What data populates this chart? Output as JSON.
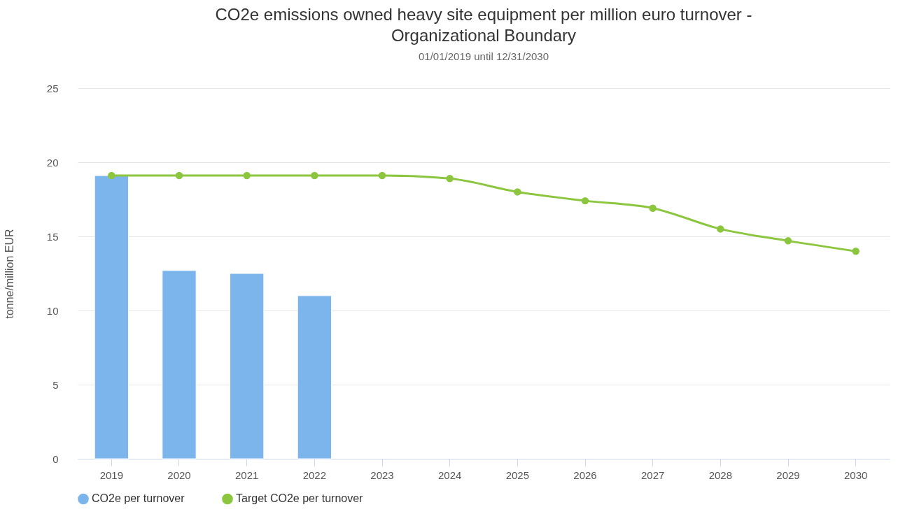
{
  "chart_data": {
    "type": "bar",
    "title": "CO2e emissions owned heavy site equipment per million euro turnover - Organizational Boundary",
    "subtitle": "01/01/2019 until 12/31/2030",
    "ylabel": "tonne/million EUR",
    "categories": [
      "2019",
      "2020",
      "2021",
      "2022",
      "2023",
      "2024",
      "2025",
      "2026",
      "2027",
      "2028",
      "2029",
      "2030"
    ],
    "series": [
      {
        "name": "CO2e per turnover",
        "color": "#7cb5ec",
        "values": [
          19.1,
          12.7,
          12.5,
          11.0,
          null,
          null,
          null,
          null,
          null,
          null,
          null,
          null
        ]
      },
      {
        "name": "Target CO2e per turnover",
        "type": "line",
        "color": "#8cc63f",
        "marker": "circle",
        "line_style": "solid",
        "values": [
          19.1,
          19.1,
          19.1,
          19.1,
          19.1,
          18.9,
          18.0,
          17.4,
          16.9,
          15.5,
          14.7,
          14.0
        ]
      }
    ],
    "ylim": [
      0,
      25
    ],
    "yticks": [
      0,
      5,
      10,
      15,
      20,
      25
    ],
    "grid": "y",
    "legend": "bottom"
  }
}
